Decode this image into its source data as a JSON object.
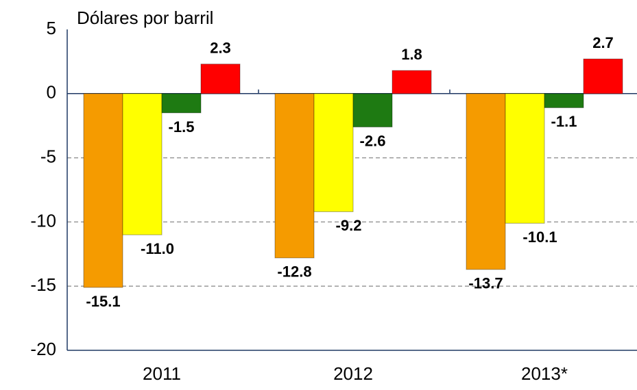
{
  "chart_data": {
    "type": "bar",
    "y_label": "Dólares por barril",
    "categories": [
      "2011",
      "2012",
      "2013*"
    ],
    "series": [
      {
        "color": "#f59b00",
        "values": [
          -15.1,
          -12.8,
          -13.7
        ],
        "value_labels": [
          "-15.1",
          "-12.8",
          "-13.7"
        ]
      },
      {
        "color": "#ffff00",
        "values": [
          -11,
          -9.2,
          -10.1
        ],
        "value_labels": [
          "-11.0",
          "-9.2",
          "-10.1"
        ]
      },
      {
        "color": "#1e7a12",
        "values": [
          -1.5,
          -2.6,
          -1.1
        ],
        "value_labels": [
          "-1.5",
          "-2.6",
          "-1.1"
        ]
      },
      {
        "color": "#ff0000",
        "values": [
          2.3,
          1.8,
          2.7
        ],
        "value_labels": [
          "2.3",
          "1.8",
          "2.7"
        ]
      }
    ],
    "ylim": [
      -20,
      5
    ],
    "yticks": [
      5,
      0,
      -5,
      -10,
      -15,
      -20
    ],
    "grid": true
  }
}
